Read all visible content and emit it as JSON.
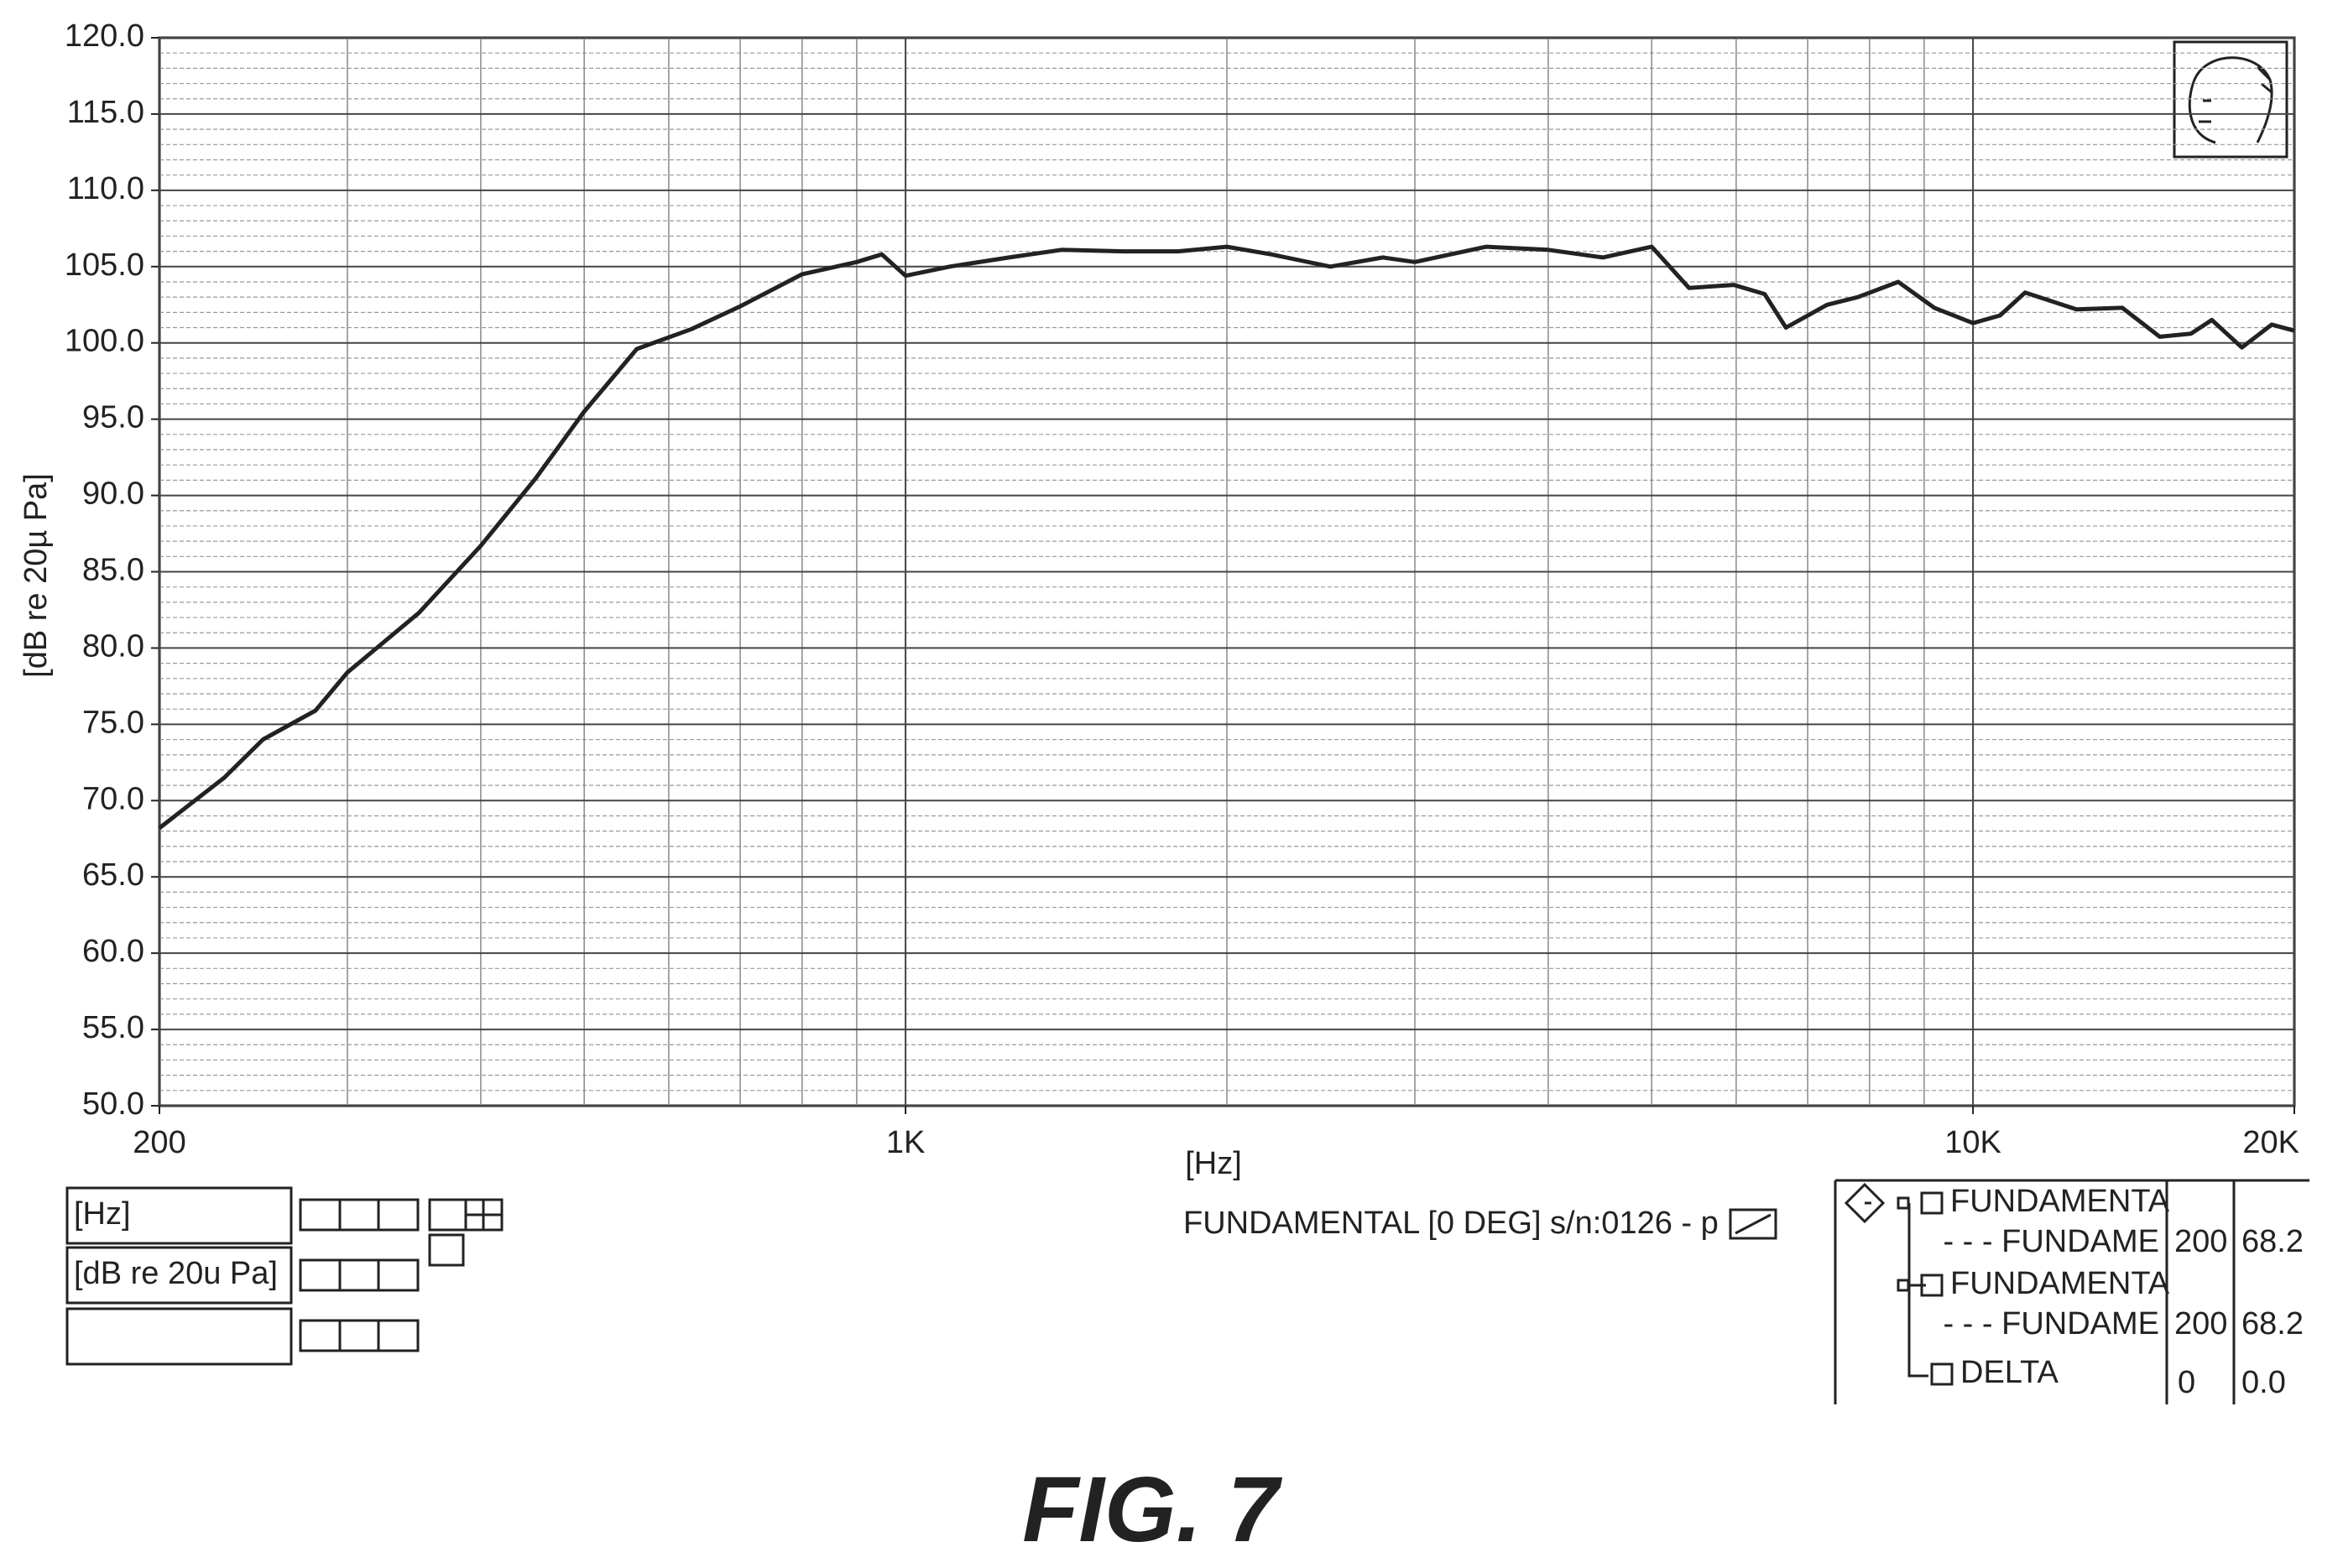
{
  "chart_data": {
    "type": "line",
    "y_label": "[dB re 20µ Pa]",
    "x_label": "[Hz]",
    "legend_text": "FUNDAMENTAL [0 DEG] s/n:0126 - p",
    "xscale": "log",
    "xlim": [
      200,
      20000
    ],
    "xticks": [
      200,
      {
        "value": 1000,
        "label": "1K"
      },
      {
        "value": 10000,
        "label": "10K"
      },
      {
        "value": 20000,
        "label": "20K"
      }
    ],
    "xminorticks": [
      300,
      400,
      500,
      600,
      700,
      800,
      900,
      2000,
      3000,
      4000,
      5000,
      6000,
      7000,
      8000,
      9000
    ],
    "ylim": [
      50,
      120
    ],
    "yticks": [
      {
        "value": 50,
        "label": "50.0"
      },
      {
        "value": 55,
        "label": "55.0"
      },
      {
        "value": 60,
        "label": "60.0"
      },
      {
        "value": 65,
        "label": "65.0"
      },
      {
        "value": 70,
        "label": "70.0"
      },
      {
        "value": 75,
        "label": "75.0"
      },
      {
        "value": 80,
        "label": "80.0"
      },
      {
        "value": 85,
        "label": "85.0"
      },
      {
        "value": 90,
        "label": "90.0"
      },
      {
        "value": 95,
        "label": "95.0"
      },
      {
        "value": 100,
        "label": "100.0"
      },
      {
        "value": 105,
        "label": "105.0"
      },
      {
        "value": 110,
        "label": "110.0"
      },
      {
        "value": 115,
        "label": "115.0"
      },
      {
        "value": 120,
        "label": "120.0"
      }
    ],
    "yminor_step": 1,
    "grid": true,
    "x": [
      200,
      230,
      250,
      280,
      300,
      350,
      400,
      450,
      500,
      560,
      630,
      700,
      800,
      900,
      950,
      1000,
      1100,
      1250,
      1400,
      1600,
      1800,
      2000,
      2200,
      2500,
      2800,
      3000,
      3500,
      4000,
      4500,
      5000,
      5420,
      5970,
      6380,
      6680,
      7300,
      7800,
      8510,
      9200,
      10000,
      10600,
      11190,
      12500,
      13800,
      14960,
      16000,
      16740,
      17860,
      19050,
      20000
    ],
    "series": [
      {
        "name": "FUNDAMENTAL",
        "color": "#222222",
        "values": [
          68.2,
          71.5,
          74,
          75.9,
          78.4,
          82.3,
          86.7,
          91.1,
          95.5,
          99.6,
          100.9,
          102.4,
          104.5,
          105.3,
          105.8,
          104.4,
          105,
          105.6,
          106.1,
          106,
          106,
          106.3,
          105.8,
          105,
          105.6,
          105.3,
          106.3,
          106.1,
          105.6,
          106.3,
          103.6,
          103.8,
          103.2,
          101,
          102.5,
          103,
          104,
          102.3,
          101.3,
          101.8,
          103.3,
          102.2,
          102.3,
          100.4,
          100.6,
          101.5,
          99.7,
          101.2,
          100.8
        ]
      }
    ]
  },
  "inputs": [
    "[Hz]",
    "[dB re 20u Pa]"
  ],
  "tree": {
    "rows": [
      {
        "label": "FUNDAMENTA"
      },
      {
        "label": "- - - FUNDAME",
        "c1": "200",
        "c2": "68.2"
      },
      {
        "label": "FUNDAMENTA"
      },
      {
        "label": "- - - FUNDAME",
        "c1": "200",
        "c2": "68.2"
      },
      {
        "label": "DELTA",
        "c1": "0",
        "c2": "0.0"
      }
    ]
  },
  "caption": "FIG. 7"
}
